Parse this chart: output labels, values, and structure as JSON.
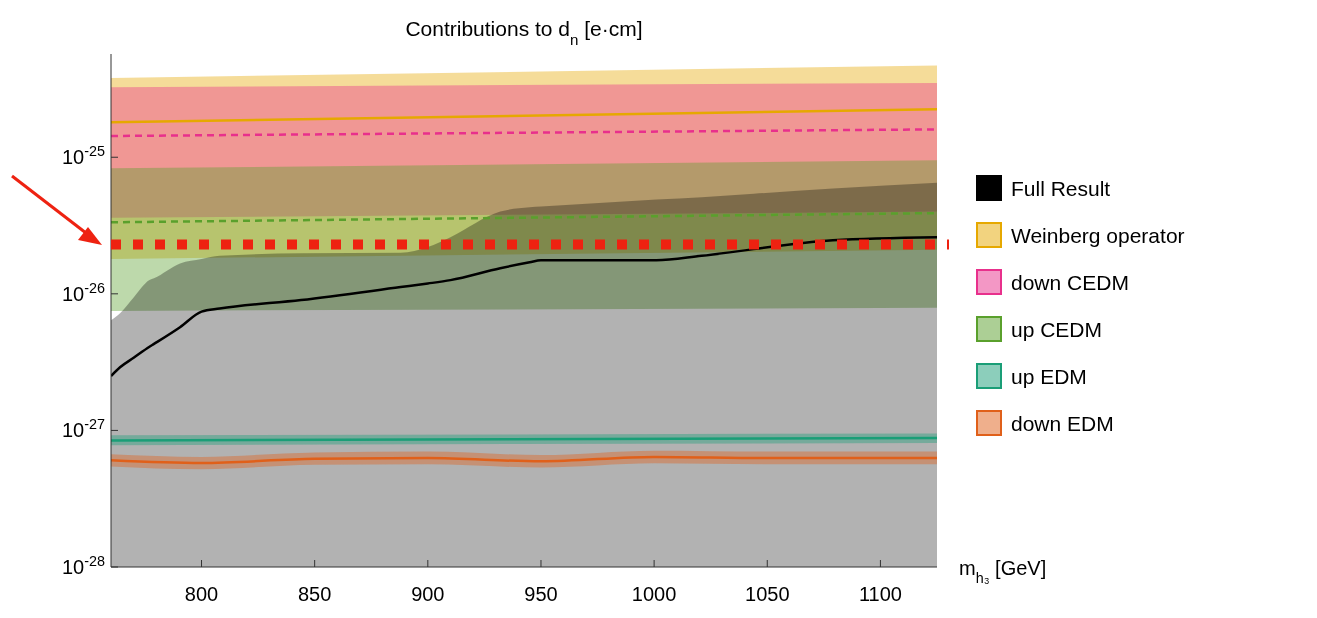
{
  "chart_data": {
    "type": "line",
    "title": "Contributions to d$_{n}$ [e·cm]",
    "xlabel": "m$_{h₃}$ [GeV]",
    "xlim": [
      760,
      1125
    ],
    "xticks": [
      800,
      850,
      900,
      950,
      1000,
      1050,
      1100
    ],
    "ylim": [
      1e-28,
      5.7e-25
    ],
    "log": true,
    "yticks": [
      {
        "value": 1e-28,
        "label": "10$^{-28}$"
      },
      {
        "value": 1e-27,
        "label": "10$^{-27}$"
      },
      {
        "value": 1e-26,
        "label": "10$^{-26}$"
      },
      {
        "value": 1e-25,
        "label": "10$^{-25}$"
      }
    ],
    "legend": "right",
    "grid": false,
    "series": [
      {
        "name": "Full Result",
        "color": "#000000",
        "line_style": "solid",
        "x": [
          760,
          764,
          770,
          777,
          779,
          790.5,
          800,
          808,
          844,
          888,
          900,
          910,
          932,
          945,
          950,
          1001,
          1021,
          1044,
          1079,
          1125
        ],
        "values": [
          2.5e-27,
          2.9e-27,
          3.4e-27,
          4.1e-27,
          4.3e-27,
          5.7e-27,
          7.4e-27,
          7.8e-27,
          9e-27,
          1.12e-26,
          1.19e-26,
          1.26e-26,
          1.54e-26,
          1.7e-26,
          1.76e-26,
          1.76e-26,
          1.9e-26,
          null,
          2.47e-26,
          2.6e-26
        ],
        "lower": [
          1e-28,
          1e-28,
          1e-28,
          1e-28,
          1e-28,
          1e-28,
          1e-28,
          1e-28,
          1e-28,
          1e-28,
          1e-28,
          1e-28,
          1e-28,
          1e-28,
          1e-28,
          1e-28,
          1e-28,
          1e-28,
          1e-28,
          1e-28
        ],
        "upper": [
          6.4e-27,
          7.2e-27,
          9.4e-27,
          1.26e-26,
          1.3e-26,
          1.67e-26,
          1.8e-26,
          1.9e-26,
          1.98e-26,
          2e-26,
          2.2e-26,
          2.6e-26,
          4e-26,
          4.3e-26,
          4.35e-26,
          4.9e-26,
          5.1e-26,
          5.4e-26,
          5.9e-26,
          6.5e-26
        ]
      },
      {
        "name": "Weinberg operator",
        "color": "#e6a800",
        "line_style": "solid",
        "x": [
          760,
          1125
        ],
        "values": [
          1.8e-25,
          2.25e-25
        ],
        "lower": [
          1.8e-26,
          2.1e-26
        ],
        "upper": [
          3.8e-25,
          4.7e-25
        ]
      },
      {
        "name": "down CEDM",
        "color": "#e8308c",
        "line_style": "dashed",
        "x": [
          760,
          1125
        ],
        "values": [
          1.43e-25,
          1.6e-25
        ],
        "lower": [
          3.6e-26,
          4e-26
        ],
        "upper": [
          3.26e-25,
          3.5e-25
        ]
      },
      {
        "name": "up CEDM",
        "color": "#5aa02c",
        "line_style": "dashed",
        "x": [
          760,
          1125
        ],
        "values": [
          3.34e-26,
          3.9e-26
        ],
        "lower": [
          7.5e-27,
          7.9e-27
        ],
        "upper": [
          8.3e-26,
          9.5e-26
        ]
      },
      {
        "name": "up EDM",
        "color": "#1a9e77",
        "line_style": "solid",
        "x": [
          760,
          1125
        ],
        "values": [
          8.45e-28,
          8.8e-28
        ],
        "lower": [
          7.8e-28,
          8.1e-28
        ],
        "upper": [
          9.2e-28,
          9.5e-28
        ]
      },
      {
        "name": "down EDM",
        "color": "#e0601a",
        "line_style": "solid",
        "x": [
          760,
          800,
          850,
          900,
          950,
          1000,
          1050,
          1125
        ],
        "values": [
          6.05e-28,
          5.78e-28,
          6.2e-28,
          6.28e-28,
          5.94e-28,
          6.4e-28,
          6.28e-28,
          6.28e-28
        ],
        "lower": [
          5.45e-28,
          5.2e-28,
          5.6e-28,
          5.65e-28,
          5.35e-28,
          5.75e-28,
          5.65e-28,
          5.65e-28
        ],
        "upper": [
          6.7e-28,
          6.4e-28,
          6.9e-28,
          7e-28,
          6.6e-28,
          7.1e-28,
          7e-28,
          7e-28
        ]
      }
    ],
    "ref_lines": [
      {
        "axis": "y",
        "value": 2.3e-26,
        "label": null,
        "color": "#ee2211",
        "line_style": "dotted"
      }
    ]
  }
}
